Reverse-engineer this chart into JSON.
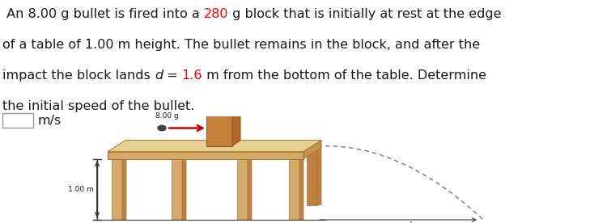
{
  "highlight_color": "#FF0000",
  "normal_color": "#1a1a1a",
  "background_color": "#FFFFFF",
  "table_top_face_color": "#E8D090",
  "table_front_face_color": "#D4A96A",
  "table_side_face_color": "#C89050",
  "table_leg_color": "#D4A96A",
  "table_leg_side_color": "#C08040",
  "table_edge_color": "#A07830",
  "block_front_color": "#C8813A",
  "block_top_color": "#E8A060",
  "block_right_color": "#B06828",
  "block_edge_color": "#8B5520",
  "bullet_color": "#444444",
  "arrow_color": "#CC0000",
  "dashed_color": "#777777",
  "floor_color": "#333333",
  "text_color": "#1a1a1a",
  "font_size": 11.5,
  "label_font_size": 6.5,
  "fig_width": 7.5,
  "fig_height": 2.76,
  "dpi": 100,
  "line1_parts": [
    [
      " An 8.00 g bullet is fired into a ",
      "#1a1a1a",
      false,
      false
    ],
    [
      "280",
      "#FF0000",
      false,
      false
    ],
    [
      " g block that is initially at rest at the edge",
      "#1a1a1a",
      false,
      false
    ]
  ],
  "line2": "of a table of 1.00 m height. The bullet remains in the block, and after the",
  "line3_parts": [
    [
      "impact the block lands ",
      "#1a1a1a",
      false,
      false
    ],
    [
      "d",
      "#1a1a1a",
      false,
      true
    ],
    [
      " = ",
      "#1a1a1a",
      false,
      false
    ],
    [
      "1.6",
      "#FF0000",
      false,
      false
    ],
    [
      " m from the bottom of the table. Determine",
      "#1a1a1a",
      false,
      false
    ]
  ],
  "line4": "the initial speed of the bullet.",
  "units_label": "m/s"
}
